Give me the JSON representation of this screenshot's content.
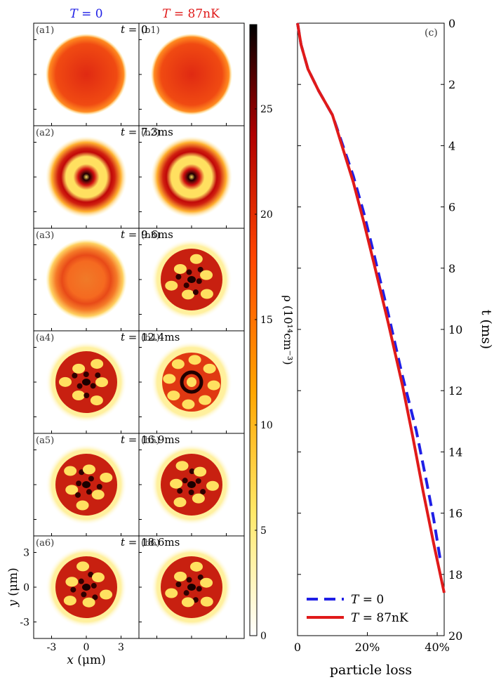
{
  "panel_headers": {
    "left": {
      "var": "T",
      "eq": " = 0",
      "color": "#1f1fe6"
    },
    "right": {
      "var": "T",
      "eq": " = 87nK",
      "color": "#e01a1a"
    }
  },
  "panels": [
    {
      "left_tag": "(a1)",
      "right_tag": "(b1)",
      "t_prefix": "t =",
      "t_value": "0",
      "pattern": "disk"
    },
    {
      "left_tag": "(a2)",
      "right_tag": "(b2)",
      "t_prefix": "t =",
      "t_value": "7.3ms",
      "pattern": "rings"
    },
    {
      "left_tag": "(a3)",
      "right_tag": "(b3)",
      "t_prefix": "t =",
      "t_value": "9.6ms",
      "pattern": "faint-ring"
    },
    {
      "left_tag": "(a4)",
      "right_tag": "(b4)",
      "t_prefix": "t =",
      "t_value": "12.4ms",
      "pattern": "ring-dots"
    },
    {
      "left_tag": "(a5)",
      "right_tag": "(b5)",
      "t_prefix": "t =",
      "t_value": "16.9ms",
      "pattern": "blobs"
    },
    {
      "left_tag": "(a6)",
      "right_tag": "(b6)",
      "t_prefix": "t =",
      "t_value": "18.6ms",
      "pattern": "blobs"
    }
  ],
  "density_axes": {
    "x_ticks": [
      "-3",
      "0",
      "3"
    ],
    "y_ticks": [
      "3",
      "0",
      "-3"
    ],
    "xlabel_var": "x",
    "xlabel_unit": " (μm)",
    "ylabel_var": "y",
    "ylabel_unit": " (μm)"
  },
  "colorbar": {
    "ticks": [
      "0",
      "5",
      "10",
      "15",
      "20",
      "25"
    ],
    "range": [
      0,
      29
    ],
    "label": "ρ (10¹⁴cm⁻³)",
    "colors": [
      "#ffffff",
      "#ffe96a",
      "#ffa500",
      "#ff4500",
      "#b00000",
      "#000000"
    ]
  },
  "chart_data": {
    "type": "line",
    "panel_tag": "(c)",
    "xlabel": "particle loss",
    "ylabel": "t (ms)",
    "xlim": [
      0,
      0.42
    ],
    "ylim": [
      0,
      20
    ],
    "y_inverted": true,
    "x_tick_values": [
      0,
      0.2,
      0.4
    ],
    "x_tick_labels": [
      "0",
      "20%",
      "40%"
    ],
    "y_tick_values": [
      0,
      2,
      4,
      6,
      8,
      10,
      12,
      14,
      16,
      18,
      20
    ],
    "y_tick_labels": [
      "0",
      "2",
      "4",
      "6",
      "8",
      "10",
      "12",
      "14",
      "16",
      "18",
      "20"
    ],
    "legend_position": "bottom-left",
    "series": [
      {
        "name": "T = 0",
        "name_var": "T",
        "name_eq": " = 0",
        "color": "#1f1fe6",
        "dash": true,
        "x": [
          0,
          0.01,
          0.03,
          0.06,
          0.1,
          0.13,
          0.16,
          0.19,
          0.22,
          0.26,
          0.3,
          0.34,
          0.37,
          0.39,
          0.41
        ],
        "y": [
          0,
          0.7,
          1.5,
          2.2,
          3.0,
          4.0,
          5.0,
          6.2,
          7.6,
          9.5,
          11.5,
          13.3,
          15.0,
          16.2,
          17.6
        ]
      },
      {
        "name": "T = 87nK",
        "name_var": "T",
        "name_eq": " = 87nK",
        "color": "#e01a1a",
        "dash": false,
        "x": [
          0,
          0.01,
          0.03,
          0.06,
          0.1,
          0.13,
          0.16,
          0.19,
          0.22,
          0.26,
          0.3,
          0.33,
          0.36,
          0.39,
          0.42
        ],
        "y": [
          0,
          0.7,
          1.5,
          2.2,
          3.0,
          4.1,
          5.2,
          6.5,
          7.9,
          9.8,
          11.8,
          13.5,
          15.3,
          17.0,
          18.6
        ]
      }
    ]
  }
}
